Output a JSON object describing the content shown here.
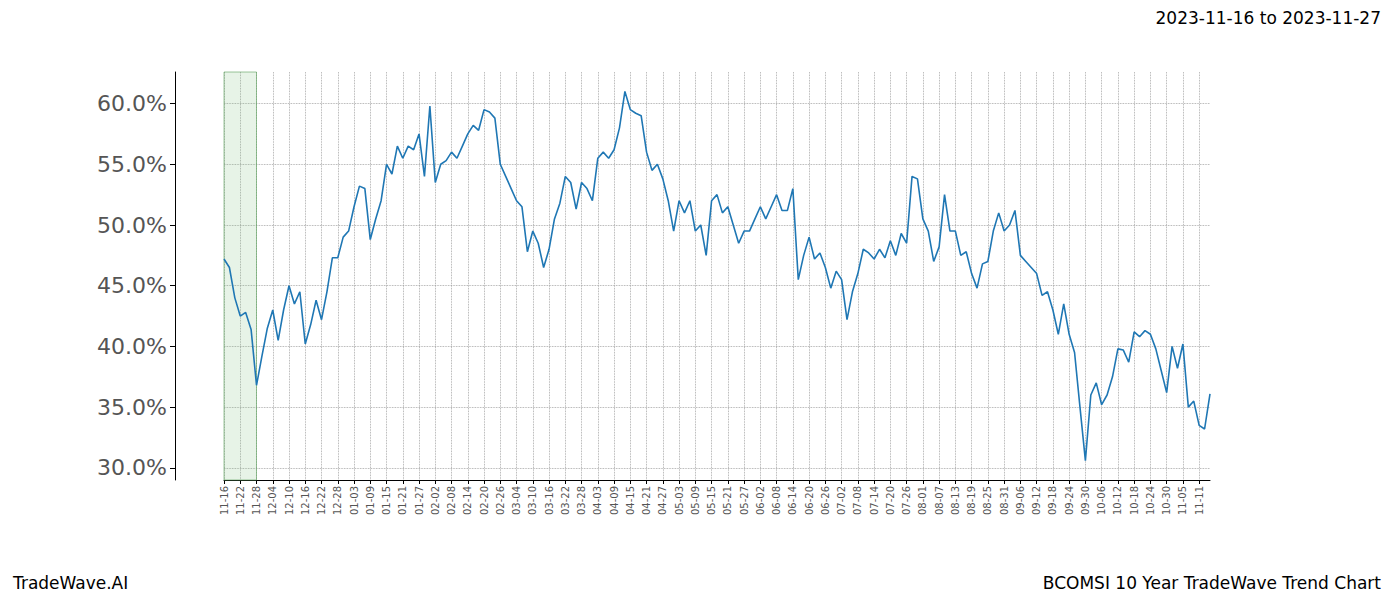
{
  "chart_data": {
    "type": "line",
    "title": "2023-11-16 to 2023-11-27",
    "source": "TradeWave.AI",
    "caption": "BCOMSI 10 Year TradeWave Trend Chart",
    "color": "#1f77b4",
    "grid": true,
    "shaded_range": [
      "11-16",
      "11-28"
    ],
    "ylim": [
      29,
      62.6
    ],
    "yticks": [
      {
        "value": 30,
        "label": "30.0%"
      },
      {
        "value": 35,
        "label": "35.0%"
      },
      {
        "value": 40,
        "label": "40.0%"
      },
      {
        "value": 45,
        "label": "45.0%"
      },
      {
        "value": 50,
        "label": "50.0%"
      },
      {
        "value": 55,
        "label": "55.0%"
      },
      {
        "value": 60,
        "label": "60.0%"
      }
    ],
    "categories": [
      "11-16",
      null,
      null,
      "11-22",
      null,
      null,
      "11-28",
      null,
      null,
      "12-04",
      null,
      null,
      "12-10",
      null,
      null,
      "12-16",
      null,
      null,
      "12-22",
      null,
      null,
      "12-28",
      null,
      null,
      "01-03",
      null,
      null,
      "01-09",
      null,
      null,
      "01-15",
      null,
      null,
      "01-21",
      null,
      null,
      "01-27",
      null,
      null,
      "02-02",
      null,
      null,
      "02-08",
      null,
      null,
      "02-14",
      null,
      null,
      "02-20",
      null,
      null,
      "02-26",
      null,
      null,
      "03-04",
      null,
      null,
      "03-10",
      null,
      null,
      "03-16",
      null,
      null,
      "03-22",
      null,
      null,
      "03-28",
      null,
      null,
      "04-03",
      null,
      null,
      "04-09",
      null,
      null,
      "04-15",
      null,
      null,
      "04-21",
      null,
      null,
      "04-27",
      null,
      null,
      "05-03",
      null,
      null,
      "05-09",
      null,
      null,
      "05-15",
      null,
      null,
      "05-21",
      null,
      null,
      "05-27",
      null,
      null,
      "06-02",
      null,
      null,
      "06-08",
      null,
      null,
      "06-14",
      null,
      null,
      "06-20",
      null,
      null,
      "06-26",
      null,
      null,
      "07-02",
      null,
      null,
      "07-08",
      null,
      null,
      "07-14",
      null,
      null,
      "07-20",
      null,
      null,
      "07-26",
      null,
      null,
      "08-01",
      null,
      null,
      "08-07",
      null,
      null,
      "08-13",
      null,
      null,
      "08-19",
      null,
      null,
      "08-25",
      null,
      null,
      "08-31",
      null,
      null,
      "09-06",
      null,
      null,
      "09-12",
      null,
      null,
      "09-18",
      null,
      null,
      "09-24",
      null,
      null,
      "09-30",
      null,
      null,
      "10-06",
      null,
      null,
      "10-12",
      null,
      null,
      "10-18",
      null,
      null,
      "10-24",
      null,
      null,
      "10-30",
      null,
      null,
      "11-05",
      null,
      null,
      "11-11",
      null,
      null
    ],
    "values": [
      47.2,
      46.5,
      44,
      42.5,
      42.8,
      41.4,
      36.8,
      39.2,
      41.5,
      43,
      40.5,
      43,
      45,
      43.5,
      44.5,
      40.2,
      41.8,
      43.8,
      42.2,
      44.5,
      47.3,
      47.3,
      49,
      49.5,
      51.5,
      53.2,
      53,
      48.8,
      50.5,
      52,
      55,
      54.2,
      56.5,
      55.5,
      56.5,
      56.2,
      57.5,
      54,
      59.8,
      53.5,
      55,
      55.3,
      56,
      55.5,
      56.5,
      57.5,
      58.2,
      57.8,
      59.5,
      59.3,
      58.8,
      55,
      54,
      53,
      52,
      51.5,
      47.8,
      49.5,
      48.5,
      46.5,
      48,
      50.5,
      51.8,
      54,
      53.5,
      51.3,
      53.5,
      53,
      52,
      55.5,
      56,
      55.5,
      56.2,
      58,
      61,
      59.5,
      59.2,
      59,
      56,
      54.5,
      55,
      53.8,
      52,
      49.5,
      52,
      51,
      52,
      49.5,
      50,
      47.5,
      52,
      52.5,
      51,
      51.5,
      50,
      48.5,
      49.5,
      49.5,
      50.5,
      51.5,
      50.5,
      51.5,
      52.5,
      51.2,
      51.2,
      53,
      45.5,
      47.5,
      49,
      47.2,
      47.7,
      46.5,
      44.8,
      46.2,
      45.5,
      42.2,
      44.5,
      46,
      48,
      47.7,
      47.2,
      48,
      47.3,
      48.7,
      47.5,
      49.3,
      48.5,
      54,
      53.8,
      50.5,
      49.5,
      47,
      48.2,
      52.5,
      49.5,
      49.5,
      47.5,
      47.8,
      46,
      44.8,
      46.8,
      47,
      49.5,
      51,
      49.5,
      50,
      51.2,
      47.5,
      47,
      46.5,
      46,
      44.2,
      44.5,
      43,
      41,
      43.5,
      41,
      39.5,
      35,
      30.6,
      36,
      37,
      35.2,
      36,
      37.5,
      39.8,
      39.7,
      38.7,
      41.2,
      40.8,
      41.3,
      41,
      39.8,
      38,
      36.2,
      40,
      38.2,
      40.2,
      35,
      35.5,
      33.5,
      33.2,
      36.1
    ]
  }
}
